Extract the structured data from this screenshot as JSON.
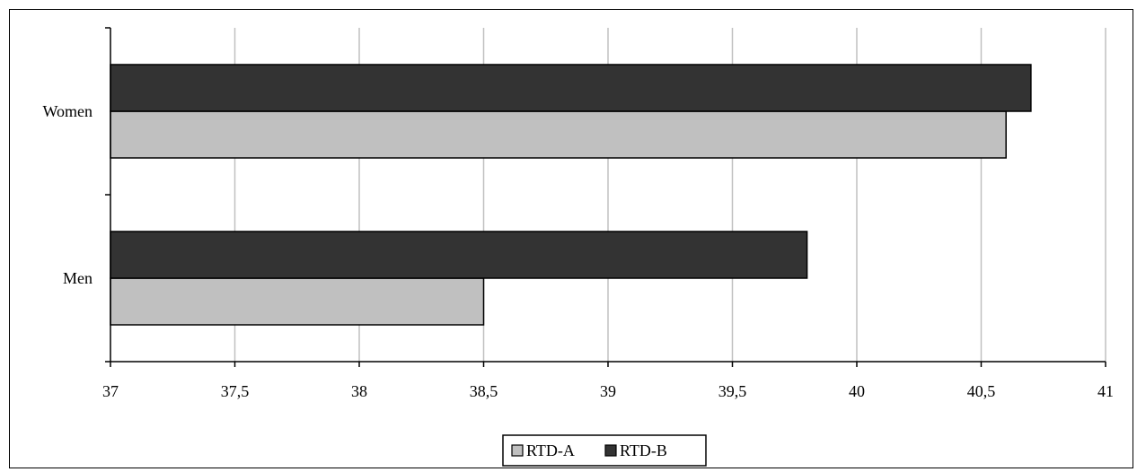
{
  "chart_data": {
    "type": "bar",
    "orientation": "horizontal",
    "categories": [
      "Men",
      "Women"
    ],
    "series": [
      {
        "name": "RTD-A",
        "values": [
          38.5,
          40.6
        ],
        "color": "#c0c0c0"
      },
      {
        "name": "RTD-B",
        "values": [
          39.8,
          40.7
        ],
        "color": "#333333"
      }
    ],
    "xlim": [
      37,
      41
    ],
    "x_ticks": [
      "37",
      "37,5",
      "38",
      "38,5",
      "39",
      "39,5",
      "40",
      "40,5",
      "41"
    ],
    "x_tick_values": [
      37,
      37.5,
      38,
      38.5,
      39,
      39.5,
      40,
      40.5,
      41
    ],
    "grid": true,
    "legend_position": "bottom"
  }
}
